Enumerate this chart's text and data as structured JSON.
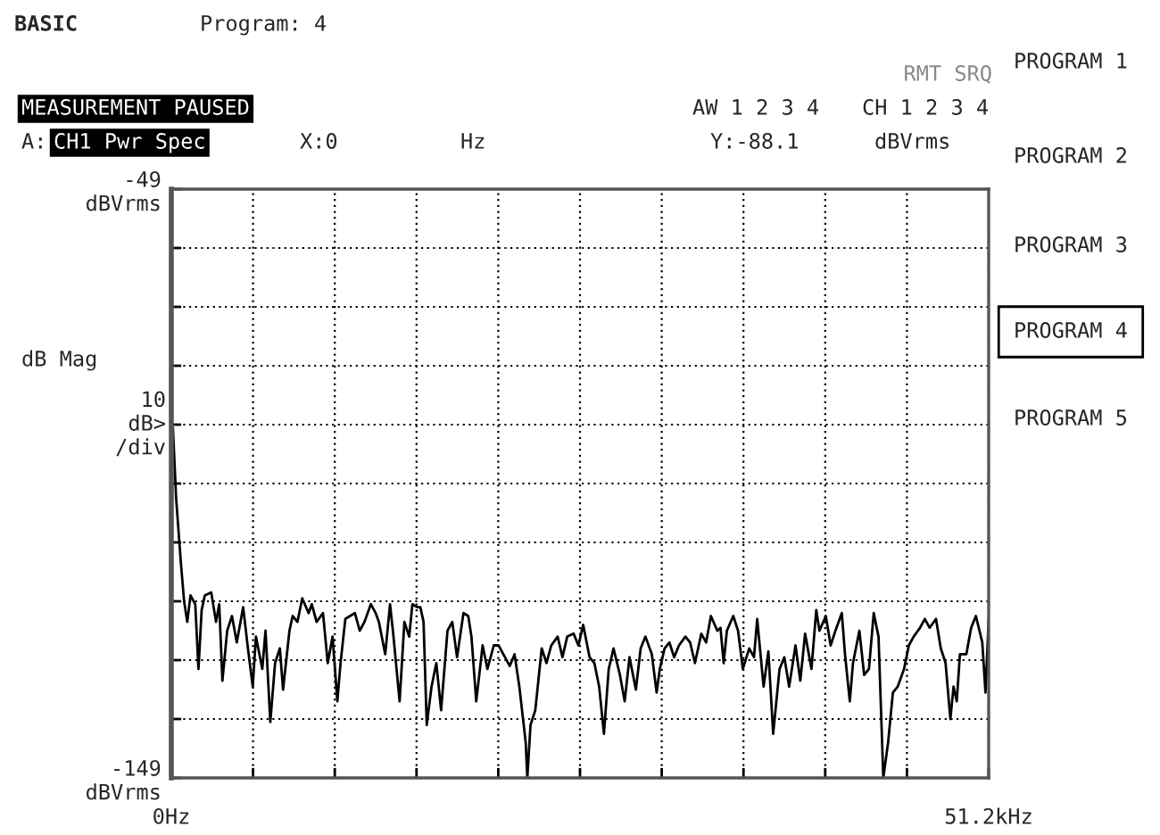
{
  "chart_data": {
    "type": "line",
    "ylabel": "dB Mag",
    "x": [
      0.1,
      0.3,
      0.6,
      0.8,
      1.0,
      1.2,
      1.5,
      1.7,
      1.9,
      2.1,
      2.5,
      2.8,
      3.0,
      3.2,
      3.5,
      3.8,
      4.1,
      4.5,
      4.8,
      5.1,
      5.3,
      5.7,
      5.9,
      6.2,
      6.5,
      6.8,
      7.0,
      7.4,
      7.6,
      7.9,
      8.2,
      8.6,
      8.8,
      9.1,
      9.5,
      9.8,
      10.1,
      10.4,
      10.6,
      10.9,
      11.2,
      11.5,
      11.8,
      12.1,
      12.5,
      12.8,
      13.0,
      13.4,
      13.7,
      13.9,
      14.3,
      14.6,
      14.9,
      15.1,
      15.4,
      15.6,
      15.8,
      16.0,
      16.3,
      16.6,
      16.9,
      17.3,
      17.6,
      17.9,
      18.3,
      18.6,
      18.8,
      19.1,
      19.5,
      19.8,
      20.2,
      20.5,
      20.8,
      21.2,
      21.5,
      21.8,
      22.2,
      22.3,
      22.5,
      22.8,
      23.2,
      23.5,
      23.8,
      24.2,
      24.5,
      24.8,
      25.2,
      25.5,
      25.8,
      26.2,
      26.5,
      26.8,
      27.1,
      27.4,
      27.7,
      28.1,
      28.4,
      28.7,
      29.1,
      29.4,
      29.7,
      30.1,
      30.4,
      30.6,
      30.9,
      31.2,
      31.5,
      31.8,
      32.2,
      32.5,
      32.8,
      33.2,
      33.5,
      33.8,
      34.2,
      34.4,
      34.6,
      34.8,
      35.2,
      35.5,
      35.8,
      36.2,
      36.5,
      36.7,
      37.1,
      37.4,
      37.7,
      38.1,
      38.4,
      38.7,
      39.1,
      39.4,
      39.7,
      40.1,
      40.4,
      40.6,
      41.0,
      41.3,
      41.6,
      42.0,
      42.2,
      42.5,
      42.7,
      43.1,
      43.4,
      43.7,
      44.0,
      44.3,
      44.6,
      44.9,
      45.2,
      45.5,
      45.9,
      46.2,
      46.5,
      46.9,
      47.2,
      47.5,
      47.9,
      48.2,
      48.5,
      48.8,
      49.0,
      49.2,
      49.4,
      49.8,
      50.1,
      50.4,
      50.8,
      51.0,
      51.2
    ],
    "series": [
      {
        "color": "#000000",
        "values": [
          -89.5,
          -101.5,
          -112.5,
          -119,
          -122.5,
          -118,
          -119.5,
          -130.5,
          -120.5,
          -118,
          -117.5,
          -122.5,
          -119.5,
          -132.5,
          -124,
          -121.5,
          -126,
          -120,
          -127,
          -133.5,
          -125,
          -130.5,
          -124,
          -139.5,
          -129.5,
          -127,
          -134,
          -124,
          -121.5,
          -122.5,
          -118.5,
          -121,
          -119.5,
          -122.5,
          -121,
          -129.5,
          -125,
          -136,
          -129.5,
          -122,
          -121.5,
          -121,
          -124,
          -122.5,
          -119.5,
          -121,
          -122.5,
          -128,
          -119.5,
          -124.5,
          -136,
          -122.5,
          -125,
          -119.5,
          -120,
          -120,
          -122.5,
          -140,
          -133.5,
          -129.5,
          -137.5,
          -124,
          -122.5,
          -128.5,
          -121,
          -121.5,
          -125,
          -136,
          -126.5,
          -130.5,
          -126.5,
          -126.5,
          -128,
          -130,
          -128,
          -133.5,
          -143,
          -149,
          -140,
          -137.5,
          -127,
          -129.5,
          -126.5,
          -125,
          -128.5,
          -125,
          -124.5,
          -126.5,
          -123,
          -128.5,
          -129.5,
          -133.5,
          -141.5,
          -130.5,
          -127,
          -131.5,
          -136,
          -128.5,
          -134,
          -127,
          -125,
          -128,
          -134.5,
          -130.5,
          -127,
          -126,
          -128.5,
          -126.5,
          -125,
          -126,
          -129.5,
          -124.5,
          -126,
          -121.5,
          -124,
          -123.5,
          -129.5,
          -124,
          -121.5,
          -124,
          -130.5,
          -127,
          -128.5,
          -122,
          -133.5,
          -127.5,
          -141.5,
          -130.5,
          -128.5,
          -133.5,
          -126.5,
          -132.5,
          -124.5,
          -130.5,
          -120.5,
          -124,
          -121.5,
          -126.5,
          -124,
          -121,
          -128,
          -136,
          -129.5,
          -124,
          -131.5,
          -130.5,
          -121,
          -125,
          -149,
          -143,
          -134.5,
          -133.5,
          -130.5,
          -126.5,
          -125,
          -123.5,
          -122,
          -123.5,
          -122,
          -127,
          -129.5,
          -139,
          -133.5,
          -136,
          -128,
          -128,
          -123.5,
          -121.5,
          -126,
          -134.5,
          -122
        ]
      }
    ],
    "xlim": [
      0,
      51.2
    ],
    "xticks": [
      {
        "value": 0,
        "label": "0Hz"
      },
      {
        "value": 5.12,
        "label": null
      },
      {
        "value": 10.24,
        "label": null
      },
      {
        "value": 15.36,
        "label": null
      },
      {
        "value": 20.48,
        "label": null
      },
      {
        "value": 25.6,
        "label": null
      },
      {
        "value": 30.72,
        "label": null
      },
      {
        "value": 35.84,
        "label": null
      },
      {
        "value": 40.96,
        "label": null
      },
      {
        "value": 46.08,
        "label": null
      },
      {
        "value": 51.2,
        "label": "51.2kHz"
      }
    ],
    "ylim": [
      -149,
      -49
    ],
    "yticks": [
      {
        "value": -149,
        "label": "-149\ndBVrms"
      },
      {
        "value": -139,
        "label": null
      },
      {
        "value": -129,
        "label": null
      },
      {
        "value": -119,
        "label": null
      },
      {
        "value": -109,
        "label": null
      },
      {
        "value": -99,
        "label": null
      },
      {
        "value": -89,
        "label": null
      },
      {
        "value": -79,
        "label": null
      },
      {
        "value": -69,
        "label": null
      },
      {
        "value": -59,
        "label": null
      },
      {
        "value": -49,
        "label": "-49\ndBVrms"
      }
    ],
    "grid": true,
    "marker": "none",
    "line_style": "solid",
    "annotations": [
      "BASIC",
      "Program: 4",
      "RMT SRQ",
      "MEASUREMENT PAUSED",
      "AW 1 2 3 4",
      "CH 1 2 3 4",
      "A:",
      "CH1 Pwr Spec",
      "X:0",
      "Hz",
      "Y:-88.1",
      "dBVrms",
      "10\ndB>\n/div",
      "PROGRAM 1",
      "PROGRAM 2",
      "PROGRAM 3",
      "PROGRAM 4",
      "PROGRAM 5"
    ]
  }
}
